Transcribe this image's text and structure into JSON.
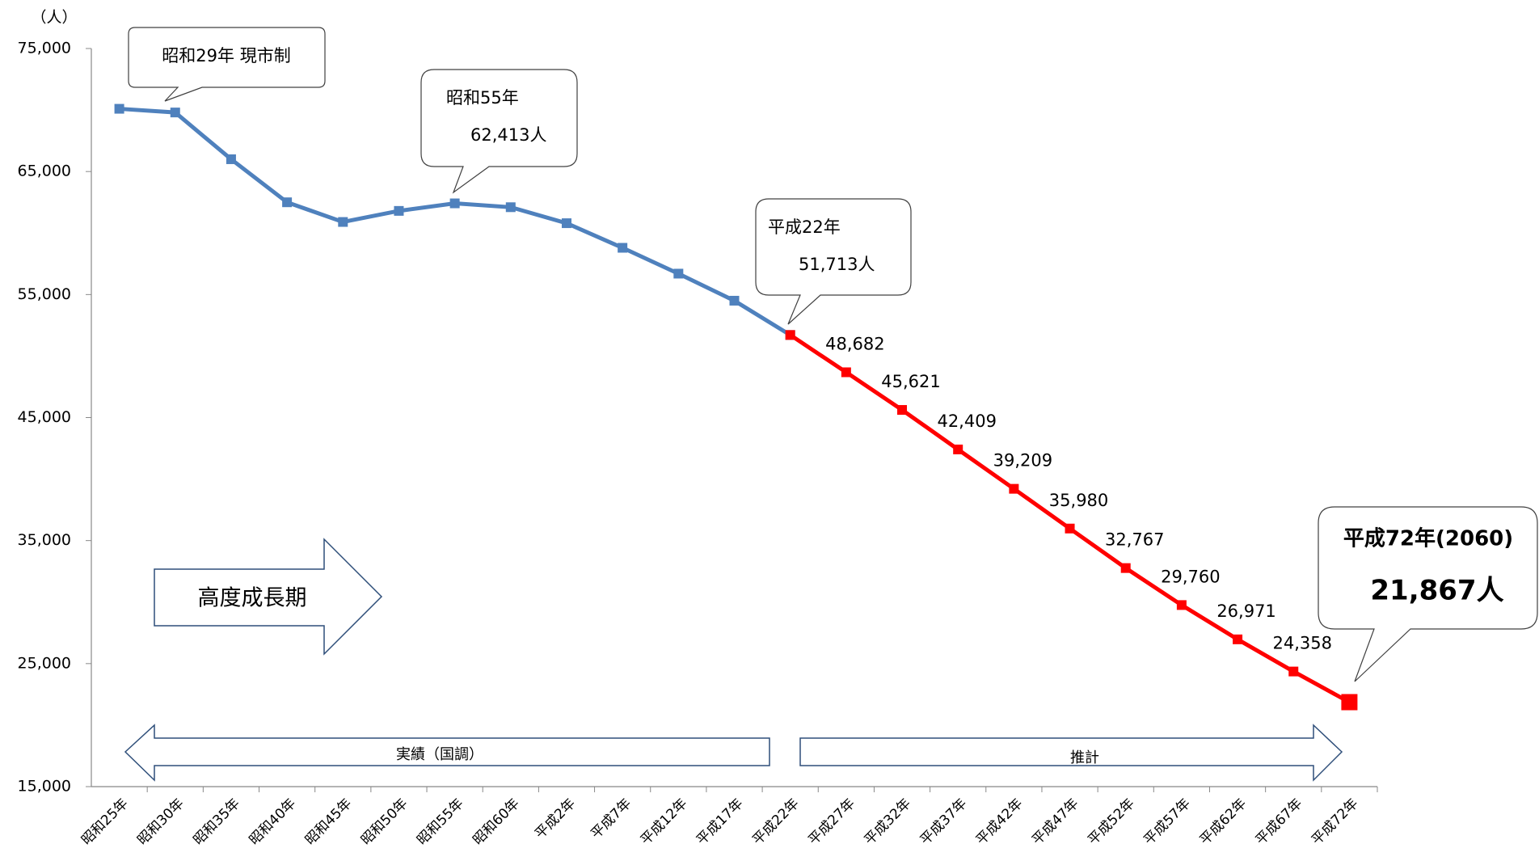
{
  "chart_data": {
    "type": "line",
    "y_unit": "（人）",
    "categories": [
      "昭和25年",
      "昭和30年",
      "昭和35年",
      "昭和40年",
      "昭和45年",
      "昭和50年",
      "昭和55年",
      "昭和60年",
      "平成2年",
      "平成7年",
      "平成12年",
      "平成17年",
      "平成22年",
      "平成27年",
      "平成32年",
      "平成37年",
      "平成42年",
      "平成47年",
      "平成52年",
      "平成57年",
      "平成62年",
      "平成67年",
      "平成72年"
    ],
    "series": [
      {
        "color": "#4f81bd",
        "values": [
          70100,
          69800,
          66000,
          62500,
          60900,
          61800,
          62413,
          62100,
          60800,
          58800,
          56700,
          54500,
          51713,
          null,
          null,
          null,
          null,
          null,
          null,
          null,
          null,
          null,
          null
        ]
      },
      {
        "color": "#ff0000",
        "values": [
          null,
          null,
          null,
          null,
          null,
          null,
          null,
          null,
          null,
          null,
          null,
          null,
          51713,
          48682,
          45621,
          42409,
          39209,
          35980,
          32767,
          29760,
          26971,
          24358,
          21867
        ],
        "value_labels": [
          null,
          null,
          null,
          null,
          null,
          null,
          null,
          null,
          null,
          null,
          null,
          null,
          null,
          "48,682",
          "45,621",
          "42,409",
          "39,209",
          "35,980",
          "32,767",
          "29,760",
          "26,971",
          "24,358",
          null
        ]
      }
    ],
    "ylim": [
      15000,
      75000
    ],
    "yticks": [
      {
        "value": 15000,
        "label": "15,000"
      },
      {
        "value": 25000,
        "label": "25,000"
      },
      {
        "value": 35000,
        "label": "35,000"
      },
      {
        "value": 45000,
        "label": "45,000"
      },
      {
        "value": 55000,
        "label": "55,000"
      },
      {
        "value": 65000,
        "label": "65,000"
      },
      {
        "value": 75000,
        "label": "75,000"
      }
    ],
    "annotations": [
      "昭和29年 現市制",
      "昭和55年",
      "62,413人",
      "平成22年",
      "51,713人",
      "平成72年(2060)",
      "21,867人",
      "高度成長期",
      "実績（国調）",
      "推計"
    ]
  }
}
